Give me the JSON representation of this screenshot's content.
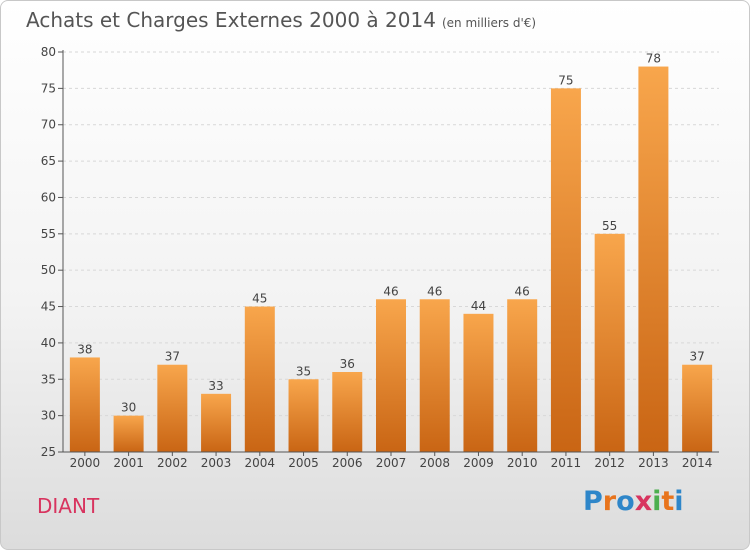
{
  "header": {
    "title": "Achats et Charges Externes 2000 à 2014",
    "unit": "(en milliers d'€)"
  },
  "commune": "DIANT",
  "logo": {
    "text": "Proxiti",
    "letter_colors": [
      "#2e86c9",
      "#e8741c",
      "#2e86c9",
      "#d8345f",
      "#4caf50",
      "#e8741c",
      "#2e86c9"
    ]
  },
  "colors": {
    "bar_top": "#f8a64c",
    "bar_bottom": "#c96514",
    "axis": "#555555",
    "grid": "#d8d8d8"
  },
  "chart_data": {
    "type": "bar",
    "title": "Achats et Charges Externes 2000 à 2014",
    "subtitle": "(en milliers d'€)",
    "categories": [
      "2000",
      "2001",
      "2002",
      "2003",
      "2004",
      "2005",
      "2006",
      "2007",
      "2008",
      "2009",
      "2010",
      "2011",
      "2012",
      "2013",
      "2014"
    ],
    "values": [
      38,
      30,
      37,
      33,
      45,
      35,
      36,
      46,
      46,
      44,
      46,
      75,
      55,
      78,
      37
    ],
    "ylim": [
      25,
      80
    ],
    "yticks": [
      25,
      30,
      35,
      40,
      45,
      50,
      55,
      60,
      65,
      70,
      75,
      80
    ],
    "xlabel": "",
    "ylabel": "",
    "grid": true,
    "grid_axis": "y",
    "data_labels": true
  }
}
